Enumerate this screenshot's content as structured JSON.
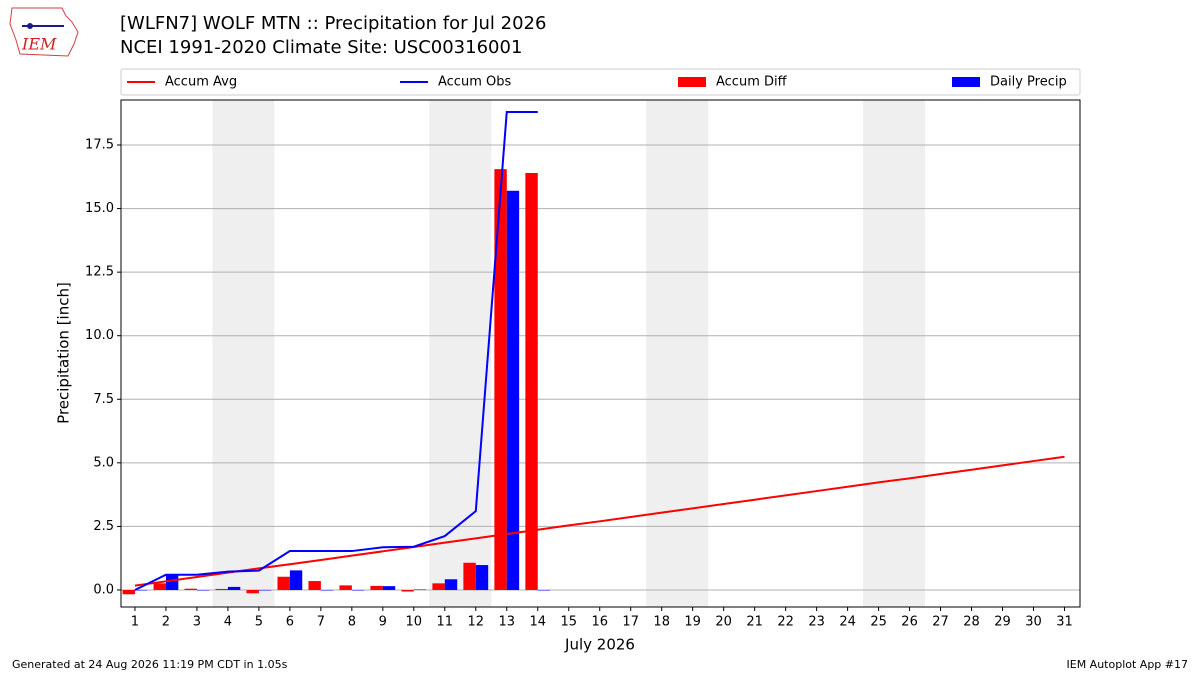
{
  "chart_data": {
    "type": "bar",
    "title": "[WLFN7] WOLF MTN :: Precipitation for Jul 2026",
    "subtitle": "NCEI 1991-2020 Climate Site: USC00316001",
    "logo_text": "IEM",
    "xlabel": "July 2026",
    "ylabel": "Precipitation [inch]",
    "footer_left": "Generated at 24 Aug 2026 11:19 PM CDT in 1.05s",
    "footer_right": "IEM Autoplot App #17",
    "x": [
      1,
      2,
      3,
      4,
      5,
      6,
      7,
      8,
      9,
      10,
      11,
      12,
      13,
      14,
      15,
      16,
      17,
      18,
      19,
      20,
      21,
      22,
      23,
      24,
      25,
      26,
      27,
      28,
      29,
      30,
      31
    ],
    "xlim": [
      0.55,
      31.5
    ],
    "xticks": [
      1,
      2,
      3,
      4,
      5,
      6,
      7,
      8,
      9,
      10,
      11,
      12,
      13,
      14,
      15,
      16,
      17,
      18,
      19,
      20,
      21,
      22,
      23,
      24,
      25,
      26,
      27,
      28,
      29,
      30,
      31
    ],
    "ylim": [
      -0.67,
      19.27
    ],
    "yticks": [
      {
        "value": 0,
        "label": "0.0"
      },
      {
        "value": 2.5,
        "label": "2.5"
      },
      {
        "value": 5,
        "label": "5.0"
      },
      {
        "value": 7.5,
        "label": "7.5"
      },
      {
        "value": 10,
        "label": "10.0"
      },
      {
        "value": 12.5,
        "label": "12.5"
      },
      {
        "value": 15,
        "label": "15.0"
      },
      {
        "value": 17.5,
        "label": "17.5"
      }
    ],
    "grid": true,
    "legend": "top",
    "shaded_ranges": [
      [
        3.5,
        5.5
      ],
      [
        10.5,
        12.5
      ],
      [
        17.5,
        19.5
      ],
      [
        24.5,
        26.5
      ]
    ],
    "bar_width": 0.4,
    "series": [
      {
        "name": "Accum Avg",
        "type": "line",
        "color": "#ff0000",
        "values": [
          0.17,
          0.34,
          0.51,
          0.68,
          0.85,
          1.01,
          1.18,
          1.35,
          1.52,
          1.69,
          1.86,
          2.03,
          2.2,
          2.37,
          2.54,
          2.7,
          2.87,
          3.04,
          3.21,
          3.38,
          3.55,
          3.72,
          3.89,
          4.06,
          4.23,
          4.39,
          4.56,
          4.73,
          4.9,
          5.07,
          5.24
        ]
      },
      {
        "name": "Accum Obs",
        "type": "line",
        "color": "#0000ff",
        "values": [
          0,
          0.6,
          0.6,
          0.72,
          0.76,
          1.53,
          1.53,
          1.53,
          1.68,
          1.7,
          2.12,
          3.1,
          18.8,
          18.8,
          null,
          null,
          null,
          null,
          null,
          null,
          null,
          null,
          null,
          null,
          null,
          null,
          null,
          null,
          null,
          null,
          null
        ]
      },
      {
        "name": "Accum Diff",
        "type": "bar",
        "offset": -1,
        "color": "#ff0000",
        "values": [
          -0.17,
          0.26,
          0.05,
          0.04,
          -0.13,
          0.52,
          0.35,
          0.18,
          0.16,
          -0.06,
          0.26,
          1.07,
          16.55,
          16.4,
          null,
          null,
          null,
          null,
          null,
          null,
          null,
          null,
          null,
          null,
          null,
          null,
          null,
          null,
          null,
          null,
          null
        ]
      },
      {
        "name": "Daily Precip",
        "type": "bar",
        "offset": 0,
        "color": "#0000ff",
        "values": [
          0,
          0.6,
          0,
          0.12,
          0,
          0.77,
          0,
          0,
          0.15,
          0.02,
          0.42,
          0.98,
          15.7,
          0,
          null,
          null,
          null,
          null,
          null,
          null,
          null,
          null,
          null,
          null,
          null,
          null,
          null,
          null,
          null,
          null,
          null
        ]
      }
    ]
  }
}
